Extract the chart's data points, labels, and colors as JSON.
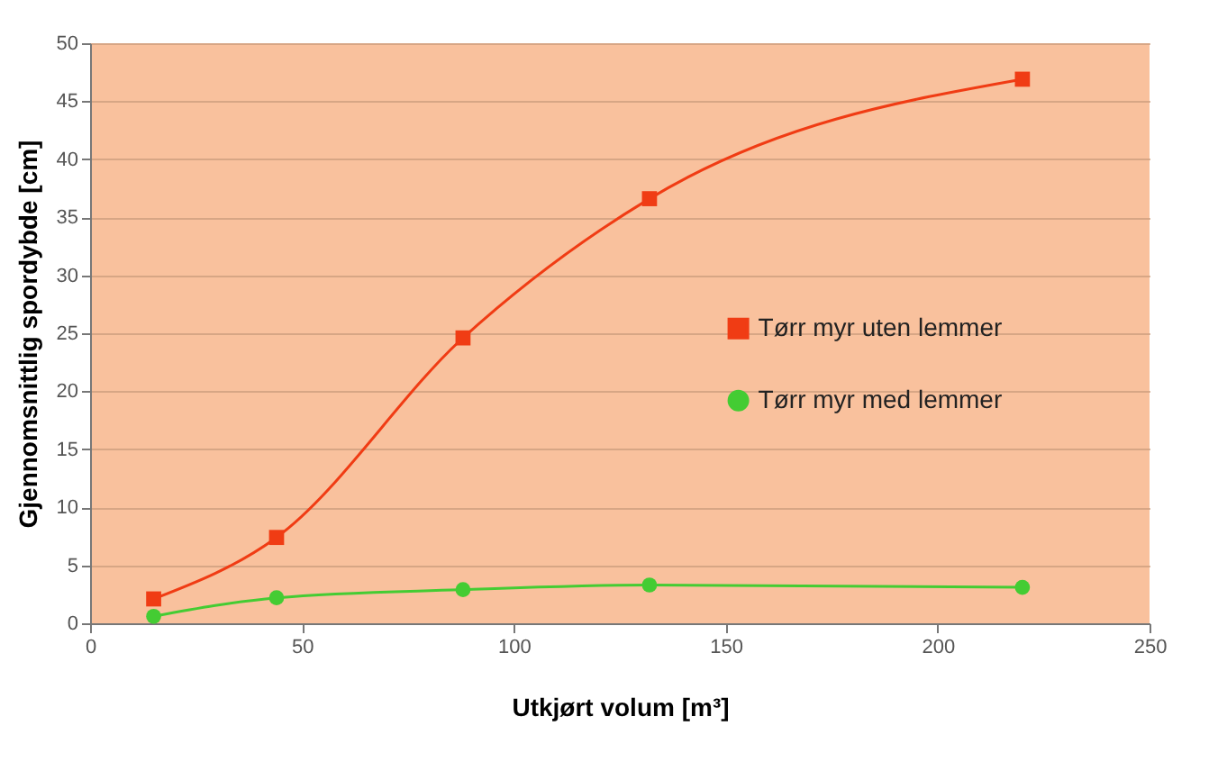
{
  "chart_data": {
    "type": "line",
    "xlabel": "Utkjørt volum [m³]",
    "ylabel": "Gjennomsnittlig spordybde [cm]",
    "x": [
      15,
      44,
      88,
      132,
      220
    ],
    "series": [
      {
        "name": "Tørr myr uten lemmer",
        "color": "#f03c14",
        "marker": "square",
        "values": [
          2.1,
          7.4,
          24.6,
          36.6,
          46.9
        ]
      },
      {
        "name": "Tørr myr med lemmer",
        "color": "#44cc33",
        "marker": "circle",
        "values": [
          0.6,
          2.2,
          2.9,
          3.3,
          3.1
        ]
      }
    ],
    "xlim": [
      0,
      250
    ],
    "xticks": [
      0,
      50,
      100,
      150,
      200,
      250
    ],
    "ylim": [
      0,
      50
    ],
    "yticks": [
      0,
      5,
      10,
      15,
      20,
      25,
      30,
      35,
      40,
      45,
      50
    ],
    "grid": "y",
    "legend": "right",
    "line_style": "solid"
  }
}
